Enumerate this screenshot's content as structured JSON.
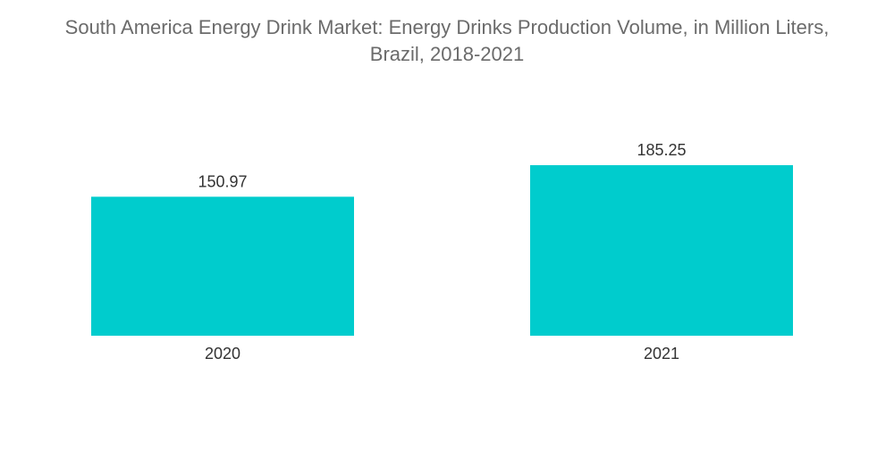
{
  "chart_data": {
    "type": "bar",
    "title_line1": "South America Energy Drink Market: Energy Drinks Production Volume, in Million Liters,",
    "title_line2": "Brazil, 2018-2021",
    "categories": [
      "2020",
      "2021"
    ],
    "values": [
      150.97,
      185.25
    ],
    "value_labels": [
      "150.97",
      "185.25"
    ],
    "xlabel": "",
    "ylabel": "",
    "ylim": [
      0,
      185.25
    ],
    "grid": false,
    "legend": "none",
    "bar_color": "#00cccd"
  }
}
